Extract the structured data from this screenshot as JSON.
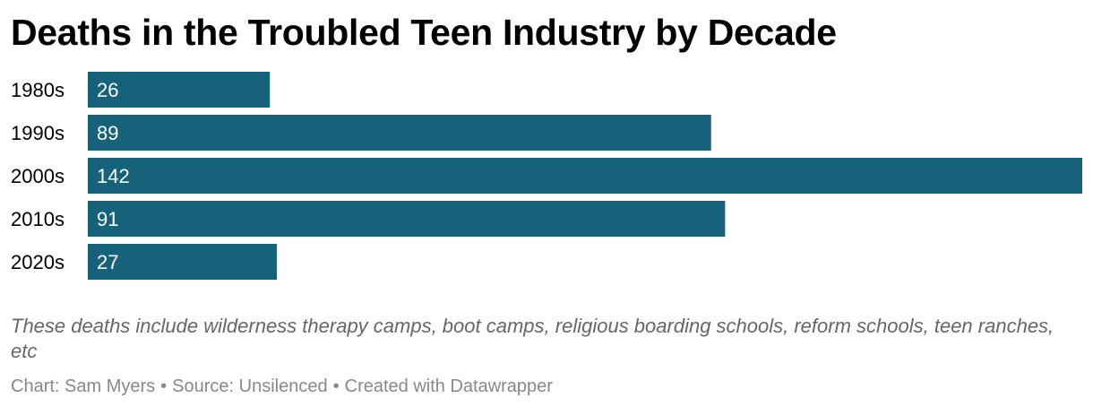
{
  "chart_data": {
    "type": "bar",
    "orientation": "horizontal",
    "title": "Deaths in the Troubled Teen Industry by Decade",
    "categories": [
      "1980s",
      "1990s",
      "2000s",
      "2010s",
      "2020s"
    ],
    "values": [
      26,
      89,
      142,
      91,
      27
    ],
    "xlim": [
      0,
      142
    ],
    "grid": false,
    "legend": "none",
    "bar_color": "#16627a",
    "notes": "These deaths include wilderness therapy camps, boot camps, religious boarding schools, reform schools, teen ranches, etc"
  },
  "footer": {
    "chart_credit": "Chart: Sam Myers",
    "source": "Source: Unsilenced",
    "created_with": "Created with Datawrapper",
    "separator": "•"
  },
  "colors": {
    "bar": "#16627a",
    "bar_label": "#ffffff",
    "title": "#000000",
    "notes": "#666666",
    "footer": "#888888"
  }
}
